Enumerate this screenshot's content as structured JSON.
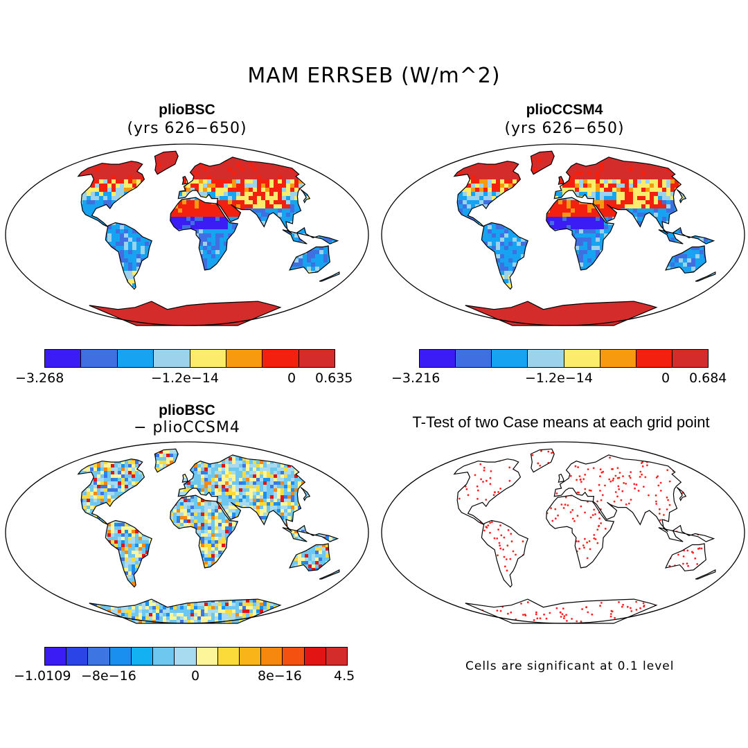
{
  "title": "MAM ERRSEB (W/m^2)",
  "panels": [
    {
      "title": "plioBSC",
      "subtitle": "(yrs 626−650)"
    },
    {
      "title": "plioCCSM4",
      "subtitle": "(yrs 626−650)"
    },
    {
      "title": "plioBSC",
      "subtitle": "− plioCCSM4"
    },
    {
      "title": "T-Test of two Case means at each grid point",
      "subtitle": ""
    }
  ],
  "colorbars": {
    "bsc": {
      "colors": [
        "#3c1cf5",
        "#3f6fe0",
        "#16a3f2",
        "#9dd2ec",
        "#fbec6c",
        "#f79a10",
        "#f31f0f",
        "#d42b2b"
      ],
      "labels": {
        "min": "−3.268",
        "mid": "−1.2e−14",
        "zero": "0",
        "max": "0.635"
      }
    },
    "ccsm4": {
      "colors": [
        "#3c1cf5",
        "#3f6fe0",
        "#16a3f2",
        "#9dd2ec",
        "#fbec6c",
        "#f79a10",
        "#f31f0f",
        "#d42b2b"
      ],
      "labels": {
        "min": "−3.216",
        "mid": "−1.2e−14",
        "zero": "0",
        "max": "0.684"
      }
    },
    "diff": {
      "colors": [
        "#3c1cf5",
        "#2a44e8",
        "#3d76e2",
        "#1b8ff0",
        "#13b0f2",
        "#6ec7ee",
        "#a8daf0",
        "#fdf59a",
        "#fbdb3a",
        "#f8b419",
        "#f6870f",
        "#f4500f",
        "#e21414",
        "#d42b2b"
      ],
      "labels": {
        "a": "−1.0109",
        "b": "−8e−16",
        "c": "0",
        "d": "8e−16",
        "e": "4.5"
      }
    }
  },
  "significance_note": "Cells are significant at 0.1 level"
}
